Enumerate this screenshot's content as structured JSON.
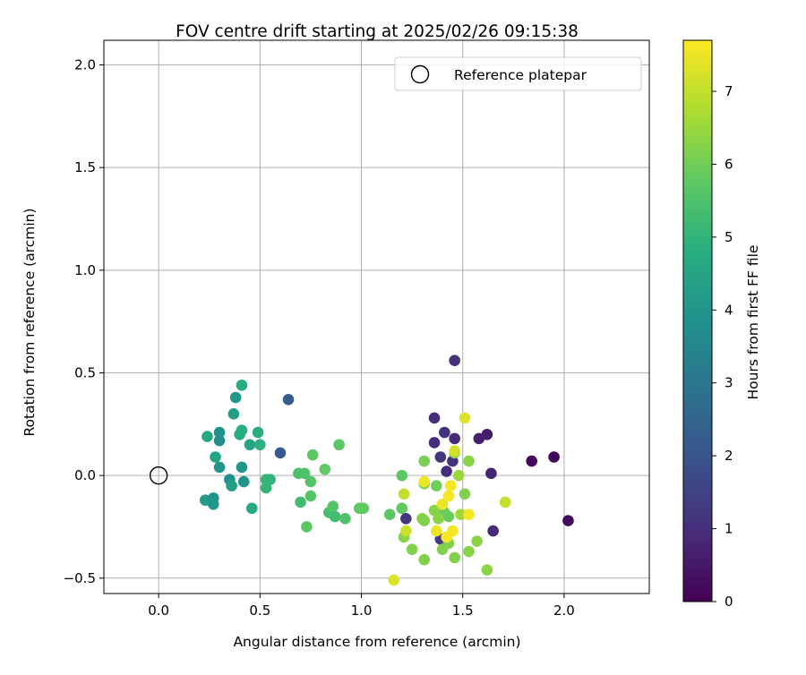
{
  "chart_data": {
    "type": "scatter",
    "title": "FOV centre drift starting at 2025/02/26 09:15:38",
    "xlabel": "Angular distance from reference (arcmin)",
    "ylabel": "Rotation from reference (arcmin)",
    "xlim": [
      -0.27,
      2.42
    ],
    "ylim": [
      -0.575,
      2.12
    ],
    "xticks": [
      0.0,
      0.5,
      1.0,
      1.5,
      2.0
    ],
    "xtick_labels": [
      "0.0",
      "0.5",
      "1.0",
      "1.5",
      "2.0"
    ],
    "yticks": [
      -0.5,
      0.0,
      0.5,
      1.0,
      1.5,
      2.0
    ],
    "ytick_labels": [
      "−0.5",
      "0.0",
      "0.5",
      "1.0",
      "1.5",
      "2.0"
    ],
    "grid": true,
    "legend": {
      "placement": "top-right",
      "entries": [
        "Reference platepar"
      ]
    },
    "colorbar": {
      "label": "Hours from first FF file",
      "colormap": "viridis",
      "range": [
        0,
        7.7
      ],
      "ticks": [
        0,
        1,
        2,
        3,
        4,
        5,
        6,
        7
      ],
      "tick_labels": [
        "0",
        "1",
        "2",
        "3",
        "4",
        "5",
        "6",
        "7"
      ]
    },
    "reference_point": {
      "x": 0.0,
      "y": 0.0
    },
    "points": [
      {
        "x": 1.84,
        "y": 0.07,
        "h": 0.1
      },
      {
        "x": 1.95,
        "y": 0.09,
        "h": 0.1
      },
      {
        "x": 2.02,
        "y": -0.22,
        "h": 0.2
      },
      {
        "x": 1.62,
        "y": 0.2,
        "h": 0.6
      },
      {
        "x": 1.58,
        "y": 0.18,
        "h": 0.7
      },
      {
        "x": 1.64,
        "y": 0.01,
        "h": 0.8
      },
      {
        "x": 1.65,
        "y": -0.27,
        "h": 0.9
      },
      {
        "x": 1.46,
        "y": 0.56,
        "h": 1.1
      },
      {
        "x": 1.36,
        "y": 0.28,
        "h": 1.0
      },
      {
        "x": 1.36,
        "y": 0.16,
        "h": 1.0
      },
      {
        "x": 1.41,
        "y": 0.21,
        "h": 1.1
      },
      {
        "x": 1.46,
        "y": 0.18,
        "h": 0.9
      },
      {
        "x": 1.39,
        "y": 0.09,
        "h": 1.2
      },
      {
        "x": 1.45,
        "y": 0.07,
        "h": 1.1
      },
      {
        "x": 1.42,
        "y": 0.02,
        "h": 1.0
      },
      {
        "x": 1.22,
        "y": -0.21,
        "h": 1.2
      },
      {
        "x": 1.39,
        "y": -0.31,
        "h": 1.3
      },
      {
        "x": 0.64,
        "y": 0.37,
        "h": 2.3
      },
      {
        "x": 0.6,
        "y": 0.11,
        "h": 2.2
      },
      {
        "x": 0.41,
        "y": 0.44,
        "h": 4.7
      },
      {
        "x": 0.38,
        "y": 0.38,
        "h": 4.0
      },
      {
        "x": 0.37,
        "y": 0.3,
        "h": 4.3
      },
      {
        "x": 0.24,
        "y": 0.19,
        "h": 4.6
      },
      {
        "x": 0.3,
        "y": 0.21,
        "h": 3.9
      },
      {
        "x": 0.3,
        "y": 0.17,
        "h": 3.8
      },
      {
        "x": 0.4,
        "y": 0.2,
        "h": 4.7
      },
      {
        "x": 0.41,
        "y": 0.22,
        "h": 4.8
      },
      {
        "x": 0.45,
        "y": 0.15,
        "h": 4.5
      },
      {
        "x": 0.49,
        "y": 0.21,
        "h": 4.8
      },
      {
        "x": 0.5,
        "y": 0.15,
        "h": 4.9
      },
      {
        "x": 0.28,
        "y": 0.09,
        "h": 4.5
      },
      {
        "x": 0.3,
        "y": 0.04,
        "h": 4.0
      },
      {
        "x": 0.41,
        "y": 0.04,
        "h": 4.0
      },
      {
        "x": 0.35,
        "y": -0.02,
        "h": 3.8
      },
      {
        "x": 0.36,
        "y": -0.05,
        "h": 4.3
      },
      {
        "x": 0.42,
        "y": -0.03,
        "h": 3.9
      },
      {
        "x": 0.23,
        "y": -0.12,
        "h": 4.2
      },
      {
        "x": 0.27,
        "y": -0.11,
        "h": 3.9
      },
      {
        "x": 0.27,
        "y": -0.14,
        "h": 4.0
      },
      {
        "x": 0.46,
        "y": -0.16,
        "h": 4.6
      },
      {
        "x": 0.53,
        "y": -0.02,
        "h": 5.1
      },
      {
        "x": 0.55,
        "y": -0.02,
        "h": 5.0
      },
      {
        "x": 0.53,
        "y": -0.06,
        "h": 5.0
      },
      {
        "x": 0.69,
        "y": 0.01,
        "h": 5.5
      },
      {
        "x": 0.72,
        "y": 0.01,
        "h": 5.5
      },
      {
        "x": 0.75,
        "y": -0.03,
        "h": 5.6
      },
      {
        "x": 0.76,
        "y": 0.1,
        "h": 5.7
      },
      {
        "x": 0.82,
        "y": 0.03,
        "h": 5.8
      },
      {
        "x": 0.89,
        "y": 0.15,
        "h": 5.7
      },
      {
        "x": 0.7,
        "y": -0.13,
        "h": 5.3
      },
      {
        "x": 0.75,
        "y": -0.1,
        "h": 5.6
      },
      {
        "x": 0.73,
        "y": -0.25,
        "h": 5.7
      },
      {
        "x": 0.84,
        "y": -0.18,
        "h": 5.4
      },
      {
        "x": 0.86,
        "y": -0.15,
        "h": 5.6
      },
      {
        "x": 0.87,
        "y": -0.2,
        "h": 5.3
      },
      {
        "x": 0.92,
        "y": -0.21,
        "h": 5.5
      },
      {
        "x": 0.99,
        "y": -0.16,
        "h": 5.8
      },
      {
        "x": 1.01,
        "y": -0.16,
        "h": 5.8
      },
      {
        "x": 1.14,
        "y": -0.19,
        "h": 5.7
      },
      {
        "x": 1.2,
        "y": 0.0,
        "h": 5.7
      },
      {
        "x": 1.2,
        "y": -0.16,
        "h": 5.8
      },
      {
        "x": 1.31,
        "y": 0.07,
        "h": 6.1
      },
      {
        "x": 1.31,
        "y": -0.04,
        "h": 6.1
      },
      {
        "x": 1.37,
        "y": -0.05,
        "h": 6.0
      },
      {
        "x": 1.41,
        "y": -0.18,
        "h": 5.9
      },
      {
        "x": 1.43,
        "y": -0.2,
        "h": 5.9
      },
      {
        "x": 1.36,
        "y": -0.17,
        "h": 6.3
      },
      {
        "x": 1.38,
        "y": -0.21,
        "h": 6.3
      },
      {
        "x": 1.3,
        "y": -0.21,
        "h": 6.3
      },
      {
        "x": 1.31,
        "y": -0.22,
        "h": 6.2
      },
      {
        "x": 1.21,
        "y": -0.3,
        "h": 6.3
      },
      {
        "x": 1.25,
        "y": -0.36,
        "h": 6.2
      },
      {
        "x": 1.31,
        "y": -0.41,
        "h": 6.2
      },
      {
        "x": 1.4,
        "y": -0.36,
        "h": 6.2
      },
      {
        "x": 1.43,
        "y": -0.33,
        "h": 6.2
      },
      {
        "x": 1.46,
        "y": -0.4,
        "h": 6.2
      },
      {
        "x": 1.46,
        "y": 0.11,
        "h": 6.4
      },
      {
        "x": 1.48,
        "y": 0.0,
        "h": 6.5
      },
      {
        "x": 1.53,
        "y": 0.07,
        "h": 6.3
      },
      {
        "x": 1.51,
        "y": -0.09,
        "h": 6.2
      },
      {
        "x": 1.49,
        "y": -0.19,
        "h": 6.6
      },
      {
        "x": 1.53,
        "y": -0.37,
        "h": 6.3
      },
      {
        "x": 1.57,
        "y": -0.32,
        "h": 6.3
      },
      {
        "x": 1.62,
        "y": -0.46,
        "h": 6.3
      },
      {
        "x": 1.71,
        "y": -0.13,
        "h": 7.0
      },
      {
        "x": 1.21,
        "y": -0.09,
        "h": 7.0
      },
      {
        "x": 1.22,
        "y": -0.27,
        "h": 7.1
      },
      {
        "x": 1.16,
        "y": -0.51,
        "h": 7.3
      },
      {
        "x": 1.46,
        "y": 0.12,
        "h": 7.2
      },
      {
        "x": 1.31,
        "y": -0.03,
        "h": 7.5
      },
      {
        "x": 1.4,
        "y": -0.14,
        "h": 7.5
      },
      {
        "x": 1.43,
        "y": -0.1,
        "h": 7.6
      },
      {
        "x": 1.44,
        "y": -0.05,
        "h": 7.6
      },
      {
        "x": 1.53,
        "y": -0.19,
        "h": 7.6
      },
      {
        "x": 1.51,
        "y": 0.28,
        "h": 7.3
      },
      {
        "x": 1.37,
        "y": -0.27,
        "h": 7.5
      },
      {
        "x": 1.42,
        "y": -0.3,
        "h": 7.6
      },
      {
        "x": 1.45,
        "y": -0.27,
        "h": 7.6
      }
    ]
  }
}
